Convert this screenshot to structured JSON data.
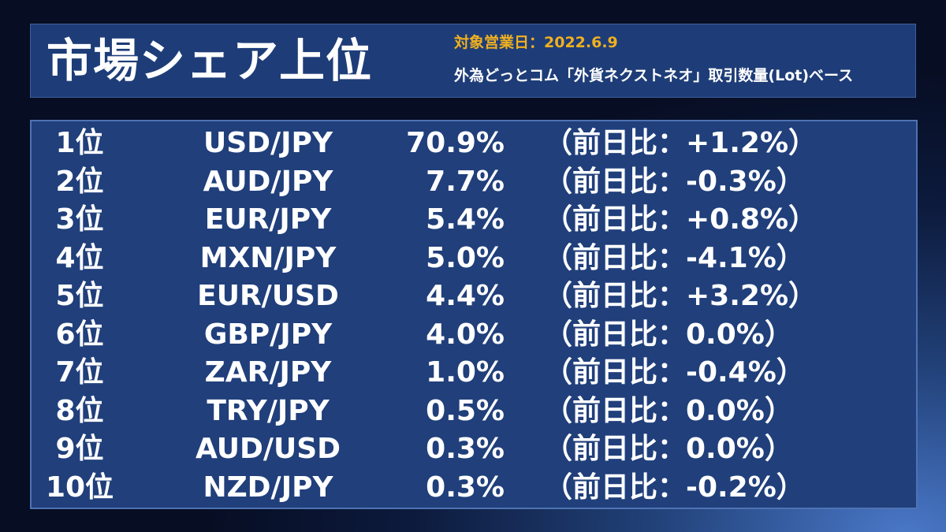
{
  "header": {
    "title": "市場シェア上位",
    "target_date": "対象営業日：2022.6.9",
    "basis_note": "外為どっとコム「外貨ネクストネオ」取引数量(Lot)ベース"
  },
  "rankings": [
    {
      "rank": "1位",
      "pair": "USD/JPY",
      "share": "70.9%",
      "change": "（前日比：+1.2%）"
    },
    {
      "rank": "2位",
      "pair": "AUD/JPY",
      "share": "7.7%",
      "change": "（前日比：-0.3%）"
    },
    {
      "rank": "3位",
      "pair": "EUR/JPY",
      "share": "5.4%",
      "change": "（前日比：+0.8%）"
    },
    {
      "rank": "4位",
      "pair": "MXN/JPY",
      "share": "5.0%",
      "change": "（前日比：-4.1%）"
    },
    {
      "rank": "5位",
      "pair": "EUR/USD",
      "share": "4.4%",
      "change": "（前日比：+3.2%）"
    },
    {
      "rank": "6位",
      "pair": "GBP/JPY",
      "share": "4.0%",
      "change": "（前日比：0.0%）"
    },
    {
      "rank": "7位",
      "pair": "ZAR/JPY",
      "share": "1.0%",
      "change": "（前日比：-0.4%）"
    },
    {
      "rank": "8位",
      "pair": "TRY/JPY",
      "share": "0.5%",
      "change": "（前日比：0.0%）"
    },
    {
      "rank": "9位",
      "pair": "AUD/USD",
      "share": "0.3%",
      "change": "（前日比：0.0%）"
    },
    {
      "rank": "10位",
      "pair": "NZD/JPY",
      "share": "0.3%",
      "change": "（前日比：-0.2%）"
    }
  ],
  "colors": {
    "accent_date": "#f0b020",
    "panel": "#203f7b",
    "panel_border": "#4f73b3",
    "text": "#ffffff"
  }
}
